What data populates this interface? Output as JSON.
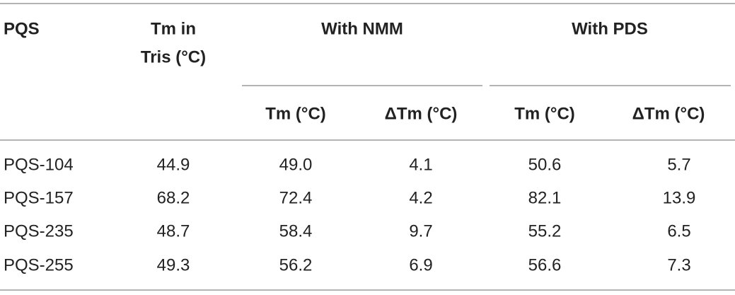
{
  "table": {
    "header": {
      "pqs": "PQS",
      "tm_tris": [
        "Tm in",
        "Tris (°C)"
      ],
      "groups": [
        "With NMM",
        "With PDS"
      ],
      "subheaders": [
        "Tm (°C)",
        "ΔTm (°C)",
        "Tm (°C)",
        "ΔTm (°C)"
      ]
    },
    "rows": [
      [
        "PQS-104",
        "44.9",
        "49.0",
        "4.1",
        "50.6",
        "5.7"
      ],
      [
        "PQS-157",
        "68.2",
        "72.4",
        "4.2",
        "82.1",
        "13.9"
      ],
      [
        "PQS-235",
        "48.7",
        "58.4",
        "9.7",
        "55.2",
        "6.5"
      ],
      [
        "PQS-255",
        "49.3",
        "56.2",
        "6.9",
        "56.6",
        "7.3"
      ]
    ]
  }
}
